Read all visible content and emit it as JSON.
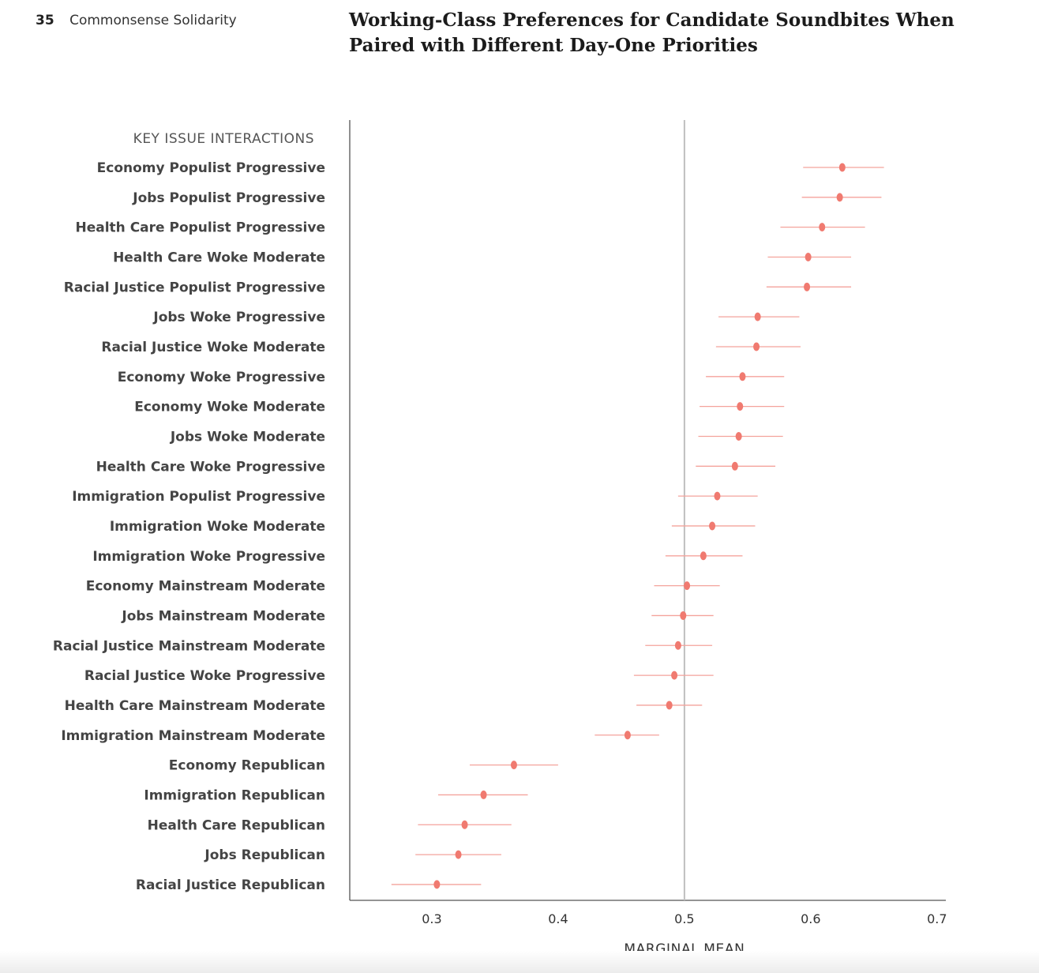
{
  "header": {
    "page_number": "35",
    "publication": "Commonsense Solidarity"
  },
  "colors": {
    "marker": "#f07a70",
    "errorbar": "#f4a39c",
    "reference_line": "#bfbfbf",
    "axis": "#555555",
    "label_text": "#444444"
  },
  "chart_data": {
    "type": "scatter",
    "title": "Working-Class Preferences for Candidate Soundbites When Paired with Different Day-One Priorities",
    "ylabel": "KEY ISSUE INTERACTIONS",
    "xlabel": "MARGINAL MEAN",
    "xlim": [
      0.235,
      0.707
    ],
    "xticks": [
      "0.3",
      "0.4",
      "0.5",
      "0.6",
      "0.7"
    ],
    "reference_line": 0.5,
    "grid": false,
    "categories": [
      "Economy Populist Progressive",
      "Jobs Populist Progressive",
      "Health Care Populist Progressive",
      "Health Care Woke Moderate",
      "Racial Justice Populist Progressive",
      "Jobs Woke Progressive",
      "Racial Justice Woke Moderate",
      "Economy Woke Progressive",
      "Economy Woke Moderate",
      "Jobs Woke Moderate",
      "Health Care Woke Progressive",
      "Immigration Populist Progressive",
      "Immigration Woke Moderate",
      "Immigration Woke Progressive",
      "Economy Mainstream Moderate",
      "Jobs Mainstream Moderate",
      "Racial Justice Mainstream Moderate",
      "Racial Justice Woke Progressive",
      "Health Care Mainstream Moderate",
      "Immigration Mainstream Moderate",
      "Economy Republican",
      "Immigration Republican",
      "Health Care Republican",
      "Jobs Republican",
      "Racial Justice Republican"
    ],
    "values": [
      0.625,
      0.623,
      0.609,
      0.598,
      0.597,
      0.558,
      0.557,
      0.546,
      0.544,
      0.543,
      0.54,
      0.526,
      0.522,
      0.515,
      0.502,
      0.499,
      0.495,
      0.492,
      0.488,
      0.455,
      0.365,
      0.341,
      0.326,
      0.321,
      0.304
    ],
    "lower": [
      0.594,
      0.593,
      0.576,
      0.566,
      0.565,
      0.527,
      0.525,
      0.517,
      0.512,
      0.511,
      0.509,
      0.495,
      0.49,
      0.485,
      0.476,
      0.474,
      0.469,
      0.46,
      0.462,
      0.429,
      0.33,
      0.305,
      0.289,
      0.287,
      0.268
    ],
    "upper": [
      0.658,
      0.656,
      0.643,
      0.632,
      0.632,
      0.591,
      0.592,
      0.579,
      0.579,
      0.578,
      0.572,
      0.558,
      0.556,
      0.546,
      0.528,
      0.523,
      0.522,
      0.523,
      0.514,
      0.48,
      0.4,
      0.376,
      0.363,
      0.355,
      0.339
    ]
  }
}
